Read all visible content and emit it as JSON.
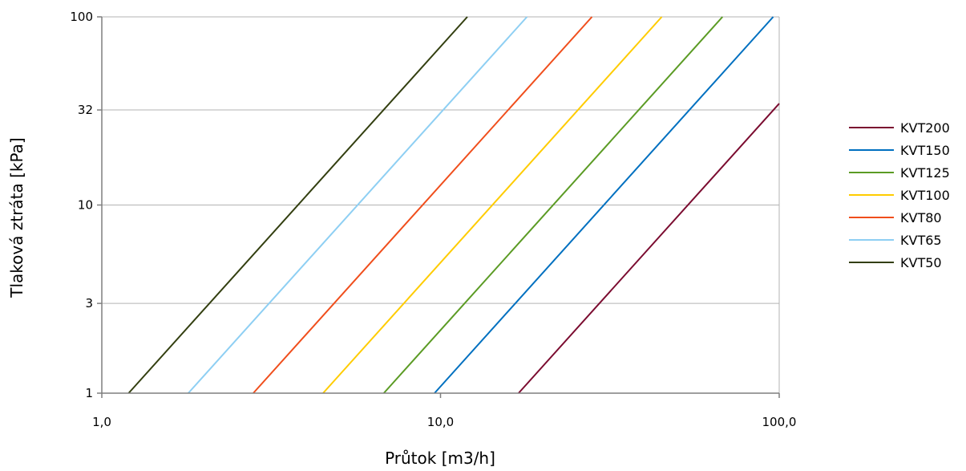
{
  "chart_data": {
    "type": "line",
    "xlabel": "Průtok [m3/h]",
    "ylabel": "Tlaková ztráta [kPa]",
    "xscale": "log",
    "yscale": "log",
    "xlim": [
      1,
      100
    ],
    "ylim": [
      1,
      100
    ],
    "xticks": [
      1,
      10,
      100
    ],
    "xtick_labels": [
      "1,0",
      "10,0",
      "100,0"
    ],
    "yticks": [
      1,
      3,
      10,
      32,
      100
    ],
    "ytick_labels": [
      "1",
      "3",
      "10",
      "32",
      "100"
    ],
    "grid": "horizontal",
    "legend_position": "right",
    "series": [
      {
        "name": "KVT200",
        "color": "#7b0c30",
        "x": [
          17.0,
          100.0
        ],
        "y": [
          1,
          34.6
        ]
      },
      {
        "name": "KVT150",
        "color": "#0070c0",
        "x": [
          9.6,
          96.0
        ],
        "y": [
          1,
          100
        ]
      },
      {
        "name": "KVT125",
        "color": "#5b9b24",
        "x": [
          6.8,
          68.0
        ],
        "y": [
          1,
          100
        ]
      },
      {
        "name": "KVT100",
        "color": "#ffcc00",
        "x": [
          4.5,
          45.0
        ],
        "y": [
          1,
          100
        ]
      },
      {
        "name": "KVT80",
        "color": "#f04e1c",
        "x": [
          2.8,
          28.0
        ],
        "y": [
          1,
          100
        ]
      },
      {
        "name": "KVT65",
        "color": "#8ecff3",
        "x": [
          1.8,
          18.0
        ],
        "y": [
          1,
          100
        ]
      },
      {
        "name": "KVT50",
        "color": "#333f10",
        "x": [
          1.2,
          12.0
        ],
        "y": [
          1,
          100
        ]
      }
    ]
  }
}
